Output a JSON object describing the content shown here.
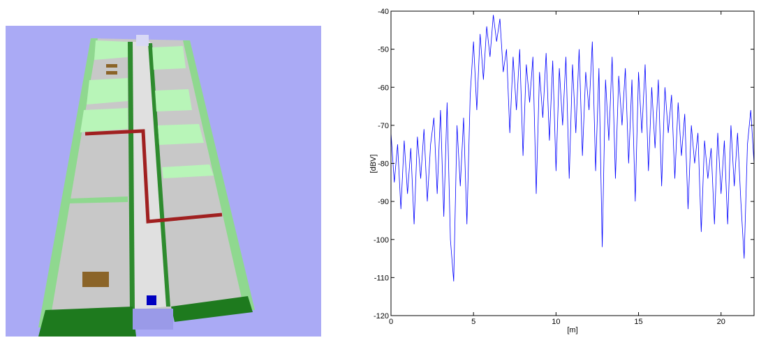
{
  "chart_data": {
    "type": "line",
    "xlabel": "[m]",
    "ylabel": "[dBV]",
    "xlim": [
      0,
      22
    ],
    "xticks": [
      0,
      5,
      10,
      15,
      20
    ],
    "ylim": [
      -120,
      -40
    ],
    "yticks": [
      -120,
      -110,
      -100,
      -90,
      -80,
      -70,
      -60,
      -50,
      -40
    ],
    "x": [
      0,
      0.2,
      0.4,
      0.6,
      0.8,
      1,
      1.2,
      1.4,
      1.6,
      1.8,
      2,
      2.2,
      2.4,
      2.6,
      2.8,
      3,
      3.2,
      3.4,
      3.6,
      3.8,
      4,
      4.2,
      4.4,
      4.6,
      4.8,
      5,
      5.2,
      5.4,
      5.6,
      5.8,
      6,
      6.2,
      6.4,
      6.6,
      6.8,
      7,
      7.2,
      7.4,
      7.6,
      7.8,
      8,
      8.2,
      8.4,
      8.6,
      8.8,
      9,
      9.2,
      9.4,
      9.6,
      9.8,
      10,
      10.2,
      10.4,
      10.6,
      10.8,
      11,
      11.2,
      11.4,
      11.6,
      11.8,
      12,
      12.2,
      12.4,
      12.6,
      12.8,
      13,
      13.2,
      13.4,
      13.6,
      13.8,
      14,
      14.2,
      14.4,
      14.6,
      14.8,
      15,
      15.2,
      15.4,
      15.6,
      15.8,
      16,
      16.2,
      16.4,
      16.6,
      16.8,
      17,
      17.2,
      17.4,
      17.6,
      17.8,
      18,
      18.2,
      18.4,
      18.6,
      18.8,
      19,
      19.2,
      19.4,
      19.6,
      19.8,
      20,
      20.2,
      20.4,
      20.6,
      20.8,
      21,
      21.2,
      21.4,
      21.6,
      21.8,
      22
    ],
    "series": [
      {
        "color": "#0000ff",
        "values": [
          -72,
          -85,
          -75,
          -92,
          -74,
          -88,
          -76,
          -96,
          -73,
          -84,
          -71,
          -90,
          -75,
          -68,
          -88,
          -66,
          -94,
          -64,
          -100,
          -111,
          -70,
          -86,
          -68,
          -96,
          -62,
          -48,
          -66,
          -46,
          -58,
          -44,
          -52,
          -41,
          -48,
          -42,
          -56,
          -50,
          -72,
          -52,
          -66,
          -50,
          -78,
          -54,
          -64,
          -52,
          -88,
          -56,
          -68,
          -51,
          -74,
          -53,
          -82,
          -55,
          -70,
          -52,
          -84,
          -54,
          -72,
          -50,
          -78,
          -56,
          -66,
          -48,
          -82,
          -55,
          -102,
          -58,
          -74,
          -52,
          -84,
          -57,
          -70,
          -55,
          -80,
          -58,
          -90,
          -56,
          -72,
          -54,
          -82,
          -60,
          -76,
          -58,
          -86,
          -60,
          -72,
          -62,
          -84,
          -64,
          -78,
          -67,
          -92,
          -70,
          -80,
          -72,
          -98,
          -74,
          -84,
          -76,
          -96,
          -72,
          -88,
          -74,
          -96,
          -70,
          -86,
          -72,
          -90,
          -105,
          -75,
          -66,
          -80
        ]
      }
    ]
  }
}
